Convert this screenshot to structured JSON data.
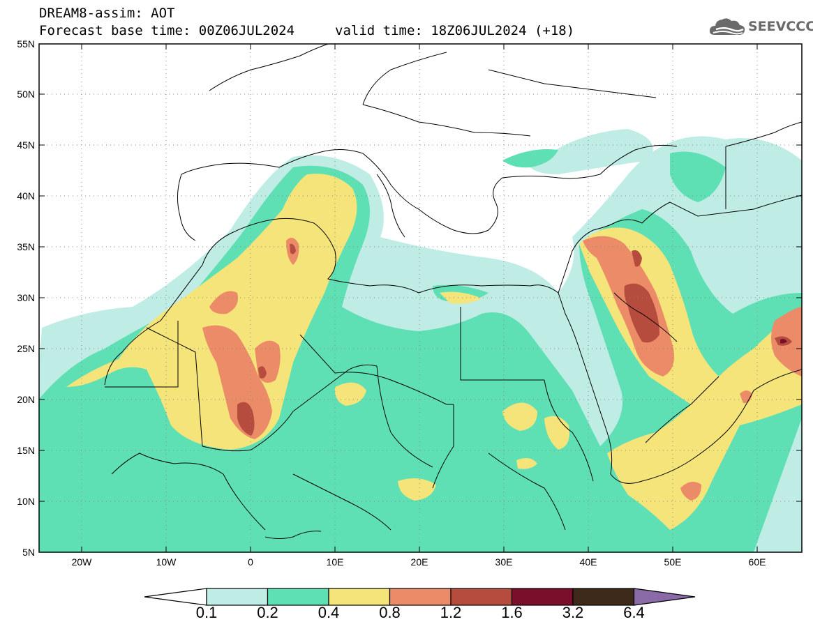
{
  "header": {
    "title": "DREAM8-assim: AOT",
    "base_time": "Forecast base time: 00Z06JUL2024",
    "valid_time": "valid time: 18Z06JUL2024 (+18)",
    "logo_text": "SEEVCCC"
  },
  "map": {
    "lat_labels": [
      "55N",
      "50N",
      "45N",
      "40N",
      "35N",
      "30N",
      "25N",
      "20N",
      "15N",
      "10N",
      "5N"
    ],
    "lon_labels": [
      "20W",
      "10W",
      "0",
      "10E",
      "20E",
      "30E",
      "40E",
      "50E",
      "60E"
    ],
    "extent": {
      "lon_min": -25,
      "lon_max": 65,
      "lat_min": 5,
      "lat_max": 55
    },
    "grid": true
  },
  "colorbar": {
    "labels": [
      "0.1",
      "0.2",
      "0.4",
      "0.8",
      "1.2",
      "1.6",
      "3.2",
      "6.4"
    ],
    "colors": [
      "#ffffff",
      "#bfede6",
      "#5fe0b4",
      "#f5e479",
      "#ec8b68",
      "#b54c3e",
      "#7a0f2c",
      "#3e2a1b",
      "#8b6aa8"
    ]
  },
  "colors": {
    "c1": "#bfede6",
    "c2": "#5fe0b4",
    "c3": "#f5e479",
    "c4": "#ec8b68",
    "c5": "#b54c3e",
    "c6": "#7a0f2c"
  }
}
